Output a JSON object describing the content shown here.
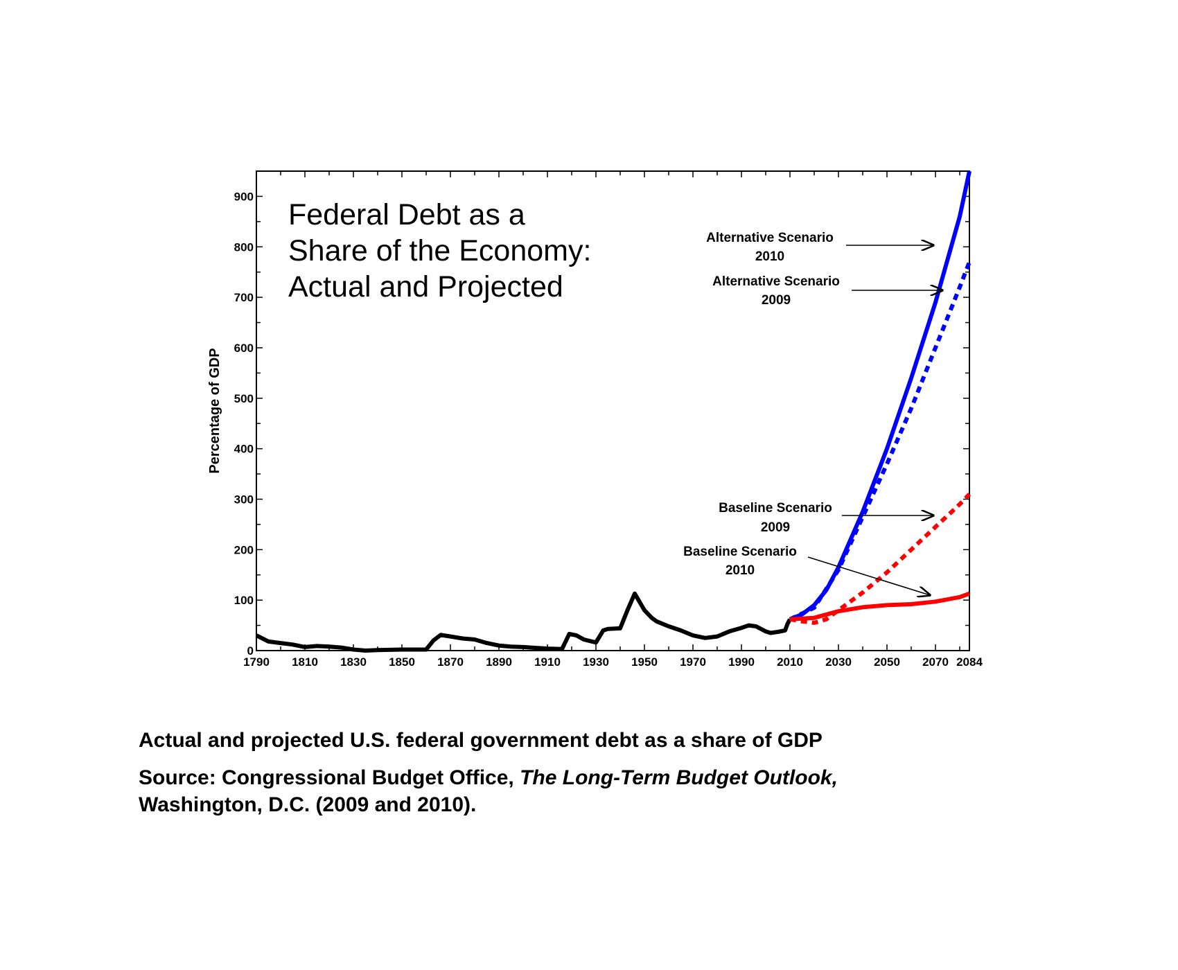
{
  "chart_data": {
    "type": "line",
    "title_lines": [
      "Federal Debt as a",
      "Share of the Economy:",
      "Actual and Projected"
    ],
    "xlabel": "",
    "ylabel": "Percentage of GDP",
    "xlim": [
      1790,
      2084
    ],
    "ylim": [
      0,
      950
    ],
    "x_ticks": [
      1790,
      1810,
      1830,
      1850,
      1870,
      1890,
      1910,
      1930,
      1950,
      1970,
      1990,
      2010,
      2030,
      2050,
      2070,
      2084
    ],
    "y_ticks": [
      0,
      100,
      200,
      300,
      400,
      500,
      600,
      700,
      800,
      900
    ],
    "grid": false,
    "series": [
      {
        "name": "Actual",
        "color": "#000000",
        "dashed": false,
        "x": [
          1790,
          1795,
          1800,
          1805,
          1810,
          1815,
          1820,
          1825,
          1830,
          1835,
          1840,
          1850,
          1860,
          1863,
          1866,
          1870,
          1875,
          1880,
          1885,
          1890,
          1895,
          1900,
          1910,
          1916,
          1919,
          1922,
          1925,
          1930,
          1933,
          1935,
          1940,
          1943,
          1946,
          1950,
          1953,
          1955,
          1960,
          1965,
          1970,
          1975,
          1980,
          1985,
          1990,
          1993,
          1996,
          2000,
          2002,
          2005,
          2008,
          2009,
          2010
        ],
        "y": [
          30,
          18,
          15,
          12,
          7,
          9,
          8,
          6,
          2,
          0,
          1,
          2,
          2,
          20,
          31,
          28,
          24,
          22,
          15,
          10,
          8,
          7,
          4,
          3,
          33,
          30,
          22,
          16,
          40,
          43,
          44,
          80,
          113,
          80,
          65,
          58,
          48,
          40,
          30,
          25,
          28,
          38,
          45,
          50,
          48,
          38,
          35,
          37,
          40,
          53,
          62
        ]
      },
      {
        "name": "Alternative Scenario 2010",
        "color": "#0000ff",
        "dashed": false,
        "x": [
          2010,
          2015,
          2020,
          2025,
          2030,
          2040,
          2050,
          2060,
          2070,
          2080,
          2084
        ],
        "y": [
          62,
          72,
          90,
          120,
          165,
          275,
          400,
          540,
          690,
          860,
          950
        ]
      },
      {
        "name": "Alternative Scenario 2009",
        "color": "#0000ff",
        "dashed": true,
        "x": [
          2010,
          2020,
          2030,
          2040,
          2050,
          2060,
          2070,
          2080,
          2084
        ],
        "y": [
          62,
          85,
          160,
          265,
          370,
          480,
          600,
          720,
          770
        ]
      },
      {
        "name": "Baseline Scenario 2009",
        "color": "#ff0000",
        "dashed": true,
        "x": [
          2010,
          2015,
          2020,
          2025,
          2030,
          2040,
          2050,
          2060,
          2070,
          2080,
          2084
        ],
        "y": [
          62,
          58,
          55,
          62,
          80,
          115,
          155,
          200,
          245,
          290,
          310
        ]
      },
      {
        "name": "Baseline Scenario 2010",
        "color": "#ff0000",
        "dashed": false,
        "x": [
          2010,
          2020,
          2030,
          2040,
          2050,
          2060,
          2070,
          2080,
          2084
        ],
        "y": [
          62,
          65,
          78,
          86,
          90,
          92,
          97,
          106,
          113
        ]
      }
    ],
    "annotations": [
      {
        "line1": "Alternative Scenario",
        "line2": "2010"
      },
      {
        "line1": "Alternative Scenario",
        "line2": "2009"
      },
      {
        "line1": "Baseline Scenario",
        "line2": "2009"
      },
      {
        "line1": "Baseline Scenario",
        "line2": "2010"
      }
    ]
  },
  "caption": {
    "line1": "Actual and projected U.S. federal government debt as a share of GDP",
    "source_prefix": "Source: Congressional Budget Office, ",
    "source_title": "The Long-Term Budget Outlook,",
    "source_suffix": "Washington, D.C. (2009 and 2010)."
  }
}
